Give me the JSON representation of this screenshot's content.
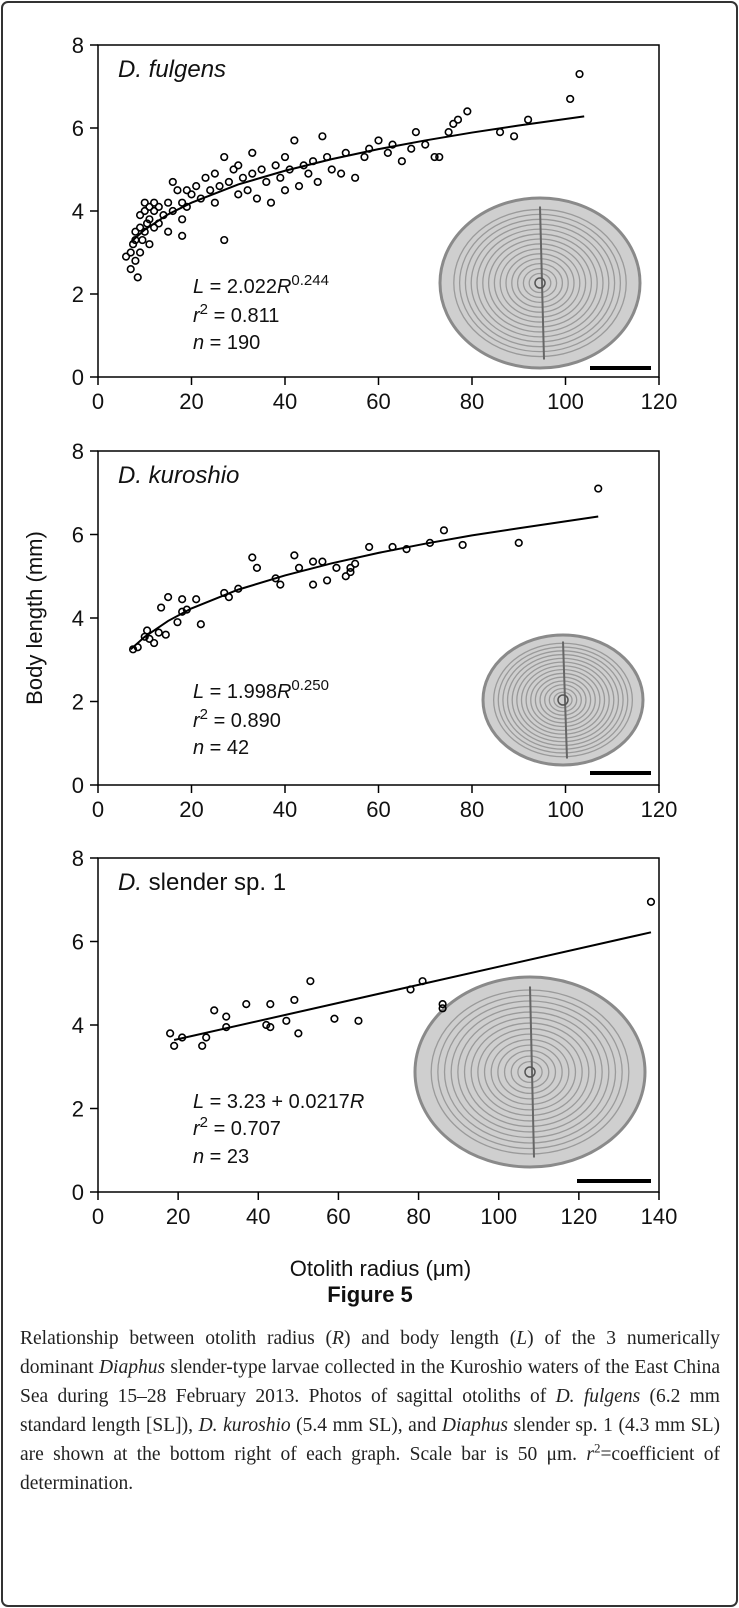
{
  "chart_data": [
    {
      "type": "scatter",
      "title": [
        "D. fulgens"
      ],
      "color": "#000000",
      "xlim": [
        0,
        120
      ],
      "xticks": [
        0,
        20,
        40,
        60,
        80,
        100,
        120
      ],
      "ylim": [
        0,
        8
      ],
      "yticks": [
        0,
        2,
        4,
        6,
        8
      ],
      "x": [
        6,
        7,
        7,
        7.5,
        8,
        8,
        8,
        8.5,
        9,
        9,
        9,
        9.5,
        10,
        10,
        10,
        10.5,
        11,
        11,
        11,
        12,
        12,
        12,
        13,
        13,
        14,
        15,
        15,
        16,
        16,
        17,
        18,
        18,
        18,
        19,
        19,
        20,
        21,
        22,
        23,
        24,
        25,
        25,
        26,
        27,
        27,
        28,
        29,
        30,
        30,
        31,
        32,
        33,
        33,
        34,
        35,
        36,
        37,
        38,
        39,
        40,
        40,
        41,
        42,
        43,
        44,
        45,
        46,
        47,
        48,
        49,
        50,
        52,
        53,
        55,
        57,
        58,
        60,
        62,
        63,
        65,
        67,
        68,
        70,
        72,
        73,
        75,
        76,
        77,
        79,
        86,
        89,
        92,
        101,
        103
      ],
      "values": [
        2.9,
        2.6,
        3.0,
        3.2,
        2.8,
        3.3,
        3.5,
        2.4,
        3.0,
        3.6,
        3.9,
        3.3,
        3.5,
        4.0,
        4.2,
        3.7,
        3.2,
        3.8,
        4.1,
        3.6,
        4.0,
        4.2,
        3.7,
        4.1,
        3.9,
        3.5,
        4.2,
        4.0,
        4.7,
        4.5,
        3.4,
        3.8,
        4.2,
        4.5,
        4.1,
        4.4,
        4.6,
        4.3,
        4.8,
        4.5,
        4.2,
        4.9,
        4.6,
        5.3,
        3.3,
        4.7,
        5.0,
        4.4,
        5.1,
        4.8,
        4.5,
        5.4,
        4.9,
        4.3,
        5.0,
        4.7,
        4.2,
        5.1,
        4.8,
        4.5,
        5.3,
        5.0,
        5.7,
        4.6,
        5.1,
        4.9,
        5.2,
        4.7,
        5.8,
        5.3,
        5.0,
        4.9,
        5.4,
        4.8,
        5.3,
        5.5,
        5.7,
        5.4,
        5.6,
        5.2,
        5.5,
        5.9,
        5.6,
        5.3,
        5.3,
        5.9,
        6.1,
        6.2,
        6.4,
        5.9,
        5.8,
        6.2,
        6.7,
        7.3
      ],
      "fit": {
        "x": [
          7,
          10,
          15,
          20,
          30,
          40,
          50,
          60,
          70,
          80,
          90,
          104
        ],
        "values": [
          3.25,
          3.55,
          3.92,
          4.2,
          4.64,
          4.97,
          5.25,
          5.49,
          5.7,
          5.89,
          6.06,
          6.28
        ]
      },
      "equation": [
        [
          "L",
          " = 2.022",
          "R",
          "0.244"
        ],
        [
          "r",
          "2",
          " = 0.811"
        ],
        [
          "n",
          " = 190"
        ]
      ]
    },
    {
      "type": "scatter",
      "title": [
        "D. kuroshio"
      ],
      "color": "#000000",
      "y_label": "Body length (mm)",
      "xlim": [
        0,
        120
      ],
      "xticks": [
        0,
        20,
        40,
        60,
        80,
        100,
        120
      ],
      "ylim": [
        0,
        8
      ],
      "yticks": [
        0,
        2,
        4,
        6,
        8
      ],
      "x": [
        7.5,
        8.5,
        10,
        10.5,
        11,
        12,
        13,
        13.5,
        14.5,
        15,
        17,
        18,
        18,
        19,
        21,
        22,
        27,
        28,
        30,
        33,
        34,
        38,
        39,
        42,
        43,
        46,
        46,
        48,
        49,
        51,
        53,
        54,
        54,
        55,
        58,
        63,
        66,
        71,
        74,
        78,
        90,
        107
      ],
      "values": [
        3.25,
        3.3,
        3.55,
        3.7,
        3.5,
        3.4,
        3.65,
        4.25,
        3.6,
        4.5,
        3.9,
        4.15,
        4.45,
        4.2,
        4.45,
        3.85,
        4.6,
        4.5,
        4.7,
        5.45,
        5.2,
        4.95,
        4.8,
        5.5,
        5.2,
        5.35,
        4.8,
        5.35,
        4.9,
        5.2,
        5.0,
        5.1,
        5.2,
        5.3,
        5.7,
        5.7,
        5.65,
        5.8,
        6.1,
        5.75,
        5.8,
        7.1
      ],
      "fit": {
        "x": [
          7,
          10,
          15,
          20,
          30,
          40,
          50,
          60,
          70,
          80,
          90,
          107
        ],
        "values": [
          3.25,
          3.55,
          3.93,
          4.23,
          4.68,
          5.02,
          5.31,
          5.56,
          5.78,
          5.98,
          6.15,
          6.43
        ]
      },
      "equation": [
        [
          "L",
          " = 1.998",
          "R",
          "0.250"
        ],
        [
          "r",
          "2",
          " = 0.890"
        ],
        [
          "n",
          " = 42"
        ]
      ]
    },
    {
      "type": "scatter",
      "title": [
        "D.",
        " slender sp. 1"
      ],
      "color": "#000000",
      "x_label": "Otolith radius (μm)",
      "xlim": [
        0,
        140
      ],
      "xticks": [
        0,
        20,
        40,
        60,
        80,
        100,
        120,
        140
      ],
      "ylim": [
        0,
        8
      ],
      "yticks": [
        0,
        2,
        4,
        6,
        8
      ],
      "x": [
        18,
        19,
        21,
        26,
        27,
        29,
        32,
        32,
        37,
        42,
        43,
        43,
        47,
        49,
        50,
        53,
        59,
        65,
        78,
        81,
        86,
        86,
        138
      ],
      "values": [
        3.8,
        3.5,
        3.7,
        3.5,
        3.7,
        4.35,
        3.95,
        4.2,
        4.5,
        4.0,
        3.95,
        4.5,
        4.1,
        4.6,
        3.8,
        5.05,
        4.15,
        4.1,
        4.85,
        5.05,
        4.5,
        4.4,
        6.95
      ],
      "fit": {
        "x": [
          19,
          138
        ],
        "values": [
          3.64,
          6.22
        ]
      },
      "equation": [
        [
          "L",
          " = 3.23 + 0.0217",
          "R"
        ],
        [
          "r",
          "2",
          " = 0.707"
        ],
        [
          "n",
          " = 23"
        ]
      ]
    }
  ],
  "figure_label": "Figure 5",
  "caption": [
    "Relationship between otolith radius (",
    "R",
    ") and body length (",
    "L",
    ") of the 3 numerically dominant ",
    "Diaphus",
    " slender-type larvae collected in the Kuroshio waters of the East China Sea during 15–28 February 2013. Photos of sagittal otoliths of ",
    "D. fulgens",
    " (6.2 mm standard length [SL]), ",
    "D. kuroshio",
    " (5.4 mm SL), and ",
    "Diaphus",
    " slender sp. 1 (4.3 mm SL) are shown at the bottom right of each graph. Scale bar is 50 μm. ",
    "r",
    "2",
    "=coefficient of determination."
  ]
}
